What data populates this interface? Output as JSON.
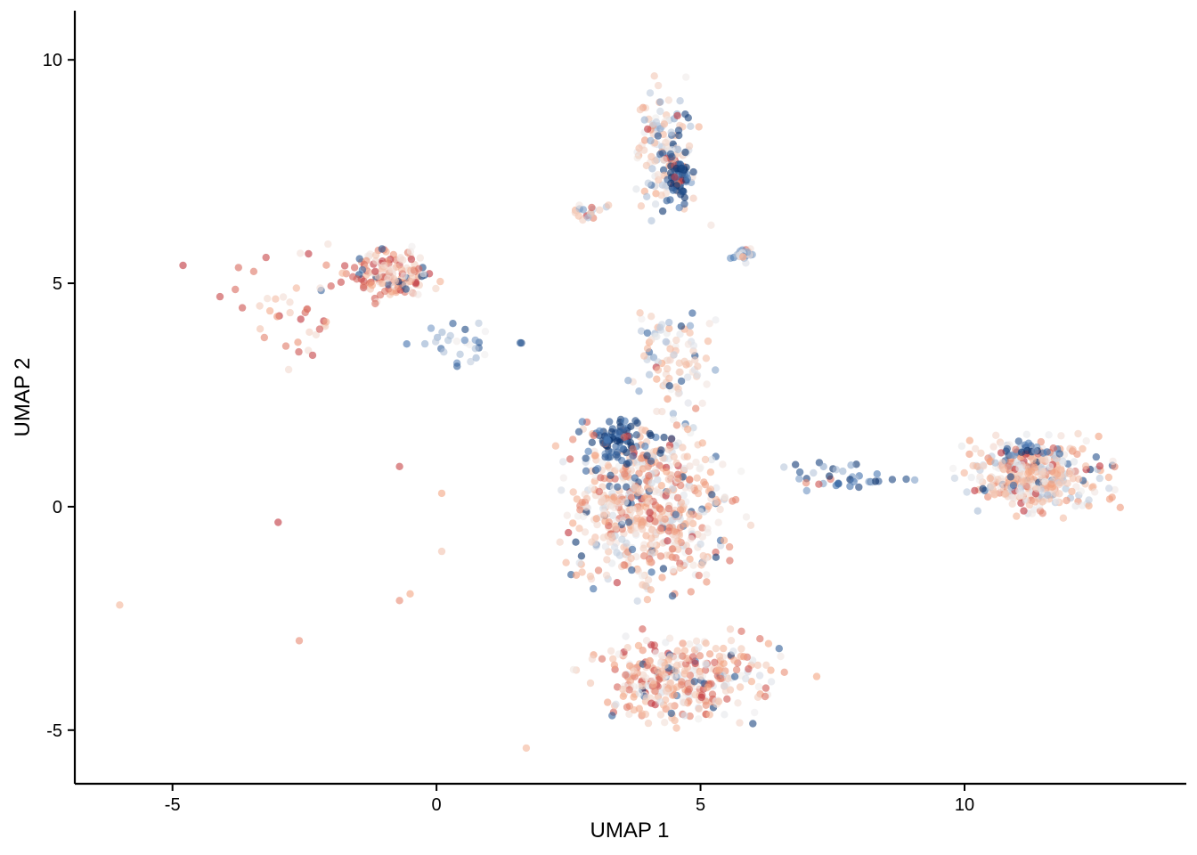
{
  "chart_data": {
    "type": "scatter",
    "title": "",
    "xlabel": "UMAP 1",
    "ylabel": "UMAP 2",
    "xlim": [
      -6.85,
      14.2
    ],
    "ylim": [
      -6.2,
      11.1
    ],
    "xticks": [
      -5,
      0,
      5,
      10
    ],
    "yticks": [
      -5,
      0,
      5,
      10
    ],
    "xtick_labels": [
      "-5",
      "0",
      "5",
      "10"
    ],
    "ytick_labels": [
      "-5",
      "0",
      "5",
      "10"
    ],
    "grid": false,
    "legend": "none",
    "color_scale": {
      "description": "diverging blue-white-red (RdBu reversed), value in [-1, 1]",
      "low": "#08306b",
      "mid_low": "#4a7ab5",
      "mid": "#f0eeee",
      "mid_high": "#f4a582",
      "high": "#b2182b"
    },
    "clusters": [
      {
        "region": "top arm",
        "x_range": [
          3.6,
          5.1
        ],
        "y_range": [
          5.6,
          10.1
        ],
        "n": 140,
        "value_mean": 0.1
      },
      {
        "region": "top arm dark core",
        "x_range": [
          4.3,
          4.9
        ],
        "y_range": [
          6.5,
          8.2
        ],
        "n": 60,
        "value_mean": -0.9
      },
      {
        "region": "upper-left tail",
        "x_range": [
          -2.2,
          0.3
        ],
        "y_range": [
          4.4,
          6.0
        ],
        "n": 150,
        "value_mean": 0.45
      },
      {
        "region": "left sparse",
        "x_range": [
          -4.3,
          -1.2
        ],
        "y_range": [
          2.0,
          6.9
        ],
        "n": 40,
        "value_mean": 0.5
      },
      {
        "region": "left-center bridge",
        "x_range": [
          -0.8,
          1.8
        ],
        "y_range": [
          3.0,
          4.3
        ],
        "n": 30,
        "value_mean": -0.4
      },
      {
        "region": "mid trunk",
        "x_range": [
          3.3,
          5.6
        ],
        "y_range": [
          1.8,
          4.8
        ],
        "n": 90,
        "value_mean": 0.1
      },
      {
        "region": "central dense",
        "x_range": [
          1.8,
          6.2
        ],
        "y_range": [
          -2.5,
          2.4
        ],
        "n": 600,
        "value_mean": 0.3
      },
      {
        "region": "central dark",
        "x_range": [
          2.5,
          4.5
        ],
        "y_range": [
          0.6,
          2.2
        ],
        "n": 90,
        "value_mean": -0.85
      },
      {
        "region": "lower lobe",
        "x_range": [
          2.4,
          6.9
        ],
        "y_range": [
          -5.2,
          -2.5
        ],
        "n": 350,
        "value_mean": 0.35
      },
      {
        "region": "right bridge",
        "x_range": [
          6.0,
          9.5
        ],
        "y_range": [
          0.2,
          1.1
        ],
        "n": 40,
        "value_mean": -0.6
      },
      {
        "region": "right cluster",
        "x_range": [
          9.4,
          13.3
        ],
        "y_range": [
          -0.4,
          1.8
        ],
        "n": 380,
        "value_mean": 0.2
      },
      {
        "region": "right cluster top",
        "x_range": [
          10.3,
          12.2
        ],
        "y_range": [
          1.0,
          1.5
        ],
        "n": 30,
        "value_mean": -0.7
      },
      {
        "region": "small isolated top",
        "x_range": [
          2.4,
          3.3
        ],
        "y_range": [
          6.3,
          6.9
        ],
        "n": 20,
        "value_mean": 0.0
      },
      {
        "region": "upper-right small",
        "x_range": [
          5.5,
          6.1
        ],
        "y_range": [
          5.4,
          5.9
        ],
        "n": 30,
        "value_mean": -0.2
      }
    ],
    "outliers": [
      {
        "x": -6.0,
        "y": -2.2,
        "value": 0.4
      },
      {
        "x": -4.8,
        "y": 5.4,
        "value": 0.9
      },
      {
        "x": -4.1,
        "y": 4.7,
        "value": 0.85
      },
      {
        "x": -3.0,
        "y": -0.35,
        "value": 0.9
      },
      {
        "x": -2.6,
        "y": -3.0,
        "value": 0.6
      },
      {
        "x": -0.7,
        "y": 0.9,
        "value": 0.85
      },
      {
        "x": -0.7,
        "y": -2.1,
        "value": 0.6
      },
      {
        "x": -0.5,
        "y": -1.95,
        "value": 0.5
      },
      {
        "x": 0.1,
        "y": -1.0,
        "value": 0.3
      },
      {
        "x": 0.1,
        "y": 0.3,
        "value": 0.5
      },
      {
        "x": 1.7,
        "y": -5.4,
        "value": 0.4
      },
      {
        "x": 7.2,
        "y": -3.8,
        "value": 0.5
      },
      {
        "x": 5.2,
        "y": 6.3,
        "value": 0.1
      }
    ]
  }
}
